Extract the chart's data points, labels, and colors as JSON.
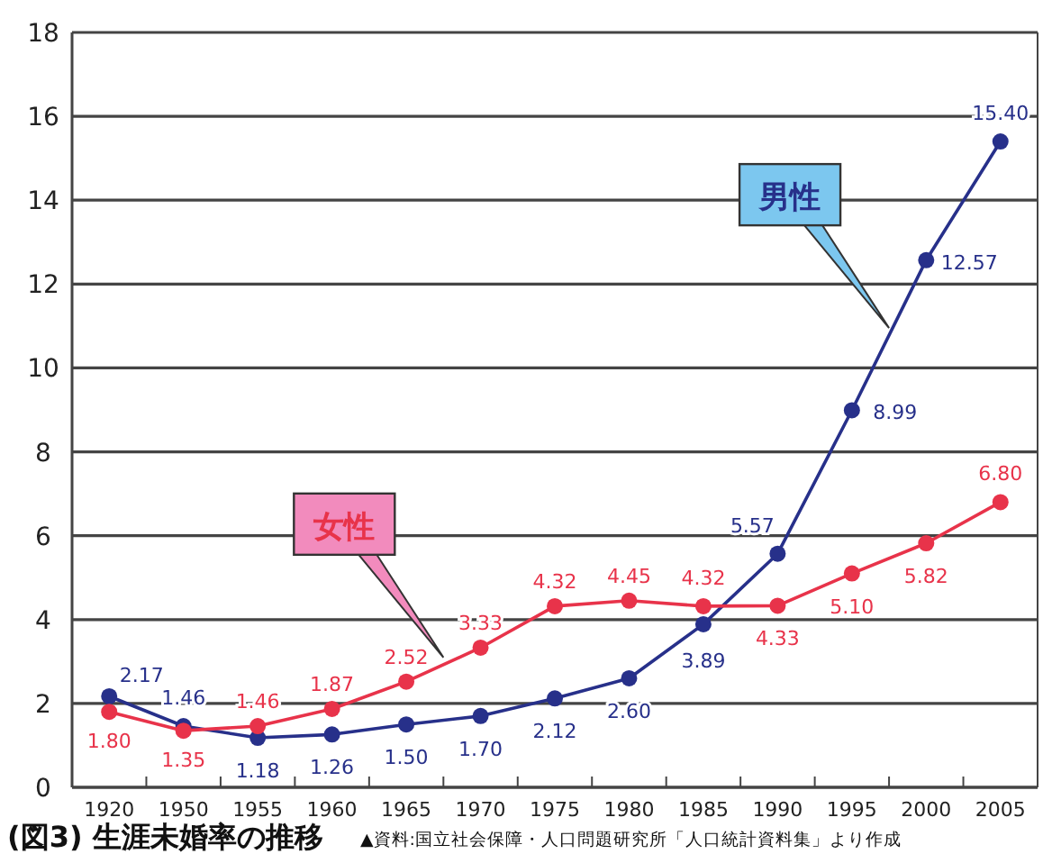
{
  "chart_data": {
    "type": "line",
    "title": "(図3) 生涯未婚率の推移",
    "annotations": [
      "▲資料:国立社会保障・人口問題研究所「人口統計資料集」より作成"
    ],
    "categories": [
      "1920",
      "1950",
      "1955",
      "1960",
      "1965",
      "1970",
      "1975",
      "1980",
      "1985",
      "1990",
      "1995",
      "2000",
      "2005"
    ],
    "series": [
      {
        "name": "男性",
        "color": "#27308a",
        "values": [
          2.17,
          1.46,
          1.18,
          1.26,
          1.5,
          1.7,
          2.12,
          2.6,
          3.89,
          5.57,
          8.99,
          12.57,
          15.4
        ],
        "value_labels": [
          "2.17",
          "1.46",
          "1.18",
          "1.26",
          "1.50",
          "1.70",
          "2.12",
          "2.60",
          "3.89",
          "5.57",
          "8.99",
          "12.57",
          "15.40"
        ]
      },
      {
        "name": "女性",
        "color": "#e8334a",
        "values": [
          1.8,
          1.35,
          1.46,
          1.87,
          2.52,
          3.33,
          4.32,
          4.45,
          4.32,
          4.33,
          5.1,
          5.82,
          6.8
        ],
        "value_labels": [
          "1.80",
          "1.35",
          "1.46",
          "1.87",
          "2.52",
          "3.33",
          "4.32",
          "4.45",
          "4.32",
          "4.33",
          "5.10",
          "5.82",
          "6.80"
        ]
      }
    ],
    "ylim": [
      0,
      18
    ],
    "yticks": [
      0,
      2,
      4,
      6,
      8,
      10,
      12,
      14,
      16,
      18
    ],
    "grid": "y",
    "marker": "circle",
    "line_style": "solid"
  }
}
